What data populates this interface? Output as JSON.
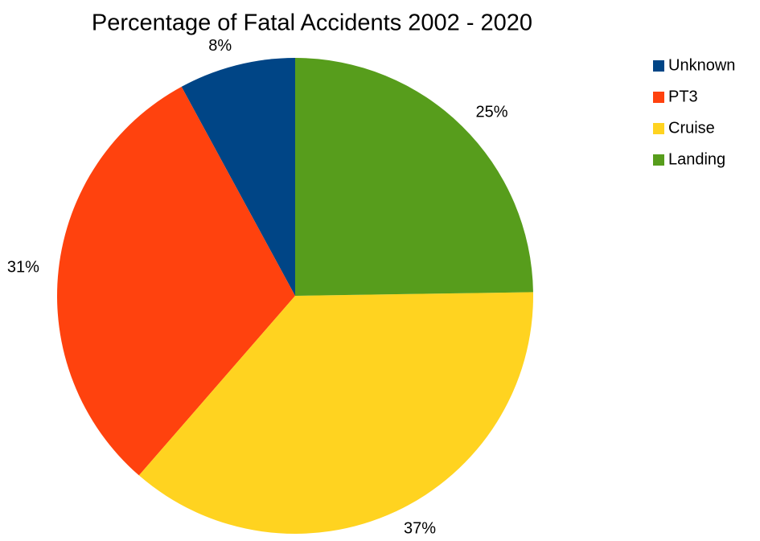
{
  "chart_data": {
    "type": "pie",
    "title": "Percentage of Fatal Accidents 2002 - 2020",
    "categories": [
      "Unknown",
      "PT3",
      "Cruise",
      "Landing"
    ],
    "values": [
      8,
      31,
      37,
      25
    ],
    "value_labels": [
      "8%",
      "31%",
      "37%",
      "25%"
    ],
    "colors": [
      "#004586",
      "#ff420e",
      "#ffd320",
      "#579d1c"
    ],
    "legend": "right"
  }
}
